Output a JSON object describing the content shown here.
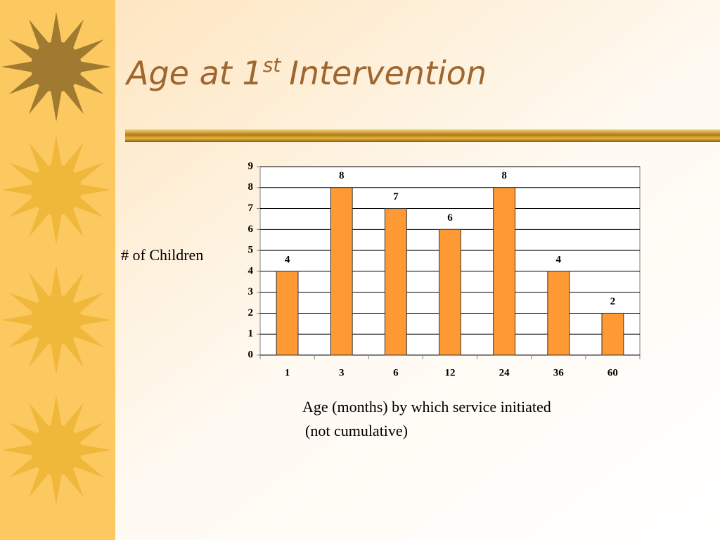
{
  "chart_data": {
    "type": "bar",
    "title": [
      "Age at 1",
      "st",
      "Intervention"
    ],
    "ylabel": "# of Children",
    "xlabel": [
      "Age (months) by which service initiated",
      "(not cumulative)"
    ],
    "categories": [
      "1",
      "3",
      "6",
      "12",
      "24",
      "36",
      "60"
    ],
    "values": [
      4,
      8,
      7,
      6,
      8,
      4,
      2
    ],
    "color": "#ff9933",
    "ylim": [
      0,
      9
    ],
    "yticks": [
      0,
      1,
      2,
      3,
      4,
      5,
      6,
      7,
      8,
      9
    ],
    "grid": true
  }
}
